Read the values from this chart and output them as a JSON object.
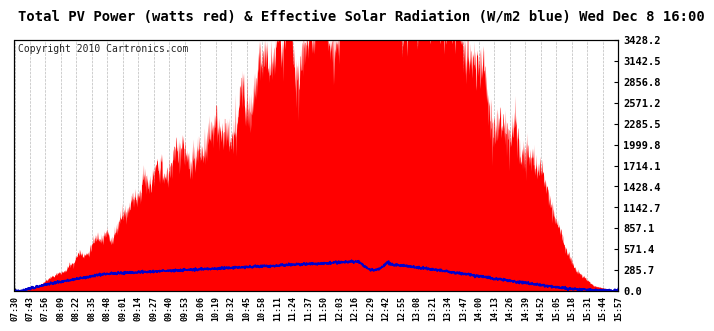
{
  "title": "Total PV Power (watts red) & Effective Solar Radiation (W/m2 blue) Wed Dec 8 16:00",
  "copyright": "Copyright 2010 Cartronics.com",
  "title_fontsize": 10,
  "copyright_fontsize": 7,
  "background_color": "#ffffff",
  "plot_bg_color": "#ffffff",
  "grid_color": "#bbbbbb",
  "red_color": "#ff0000",
  "blue_color": "#0000cc",
  "ymin": 0.0,
  "ymax": 3428.2,
  "yticks": [
    0.0,
    285.7,
    571.4,
    857.1,
    1142.7,
    1428.4,
    1714.1,
    1999.8,
    2285.5,
    2571.2,
    2856.8,
    3142.5,
    3428.2
  ],
  "xlabel_fontsize": 6,
  "ylabel_fontsize": 7.5,
  "time_labels": [
    "07:30",
    "07:43",
    "07:56",
    "08:09",
    "08:22",
    "08:35",
    "08:48",
    "09:01",
    "09:14",
    "09:27",
    "09:40",
    "09:53",
    "10:06",
    "10:19",
    "10:32",
    "10:45",
    "10:58",
    "11:11",
    "11:24",
    "11:37",
    "11:50",
    "12:03",
    "12:16",
    "12:29",
    "12:42",
    "12:55",
    "13:08",
    "13:21",
    "13:34",
    "13:47",
    "14:00",
    "14:13",
    "14:26",
    "14:39",
    "14:52",
    "15:05",
    "15:18",
    "15:31",
    "15:44",
    "15:57"
  ]
}
